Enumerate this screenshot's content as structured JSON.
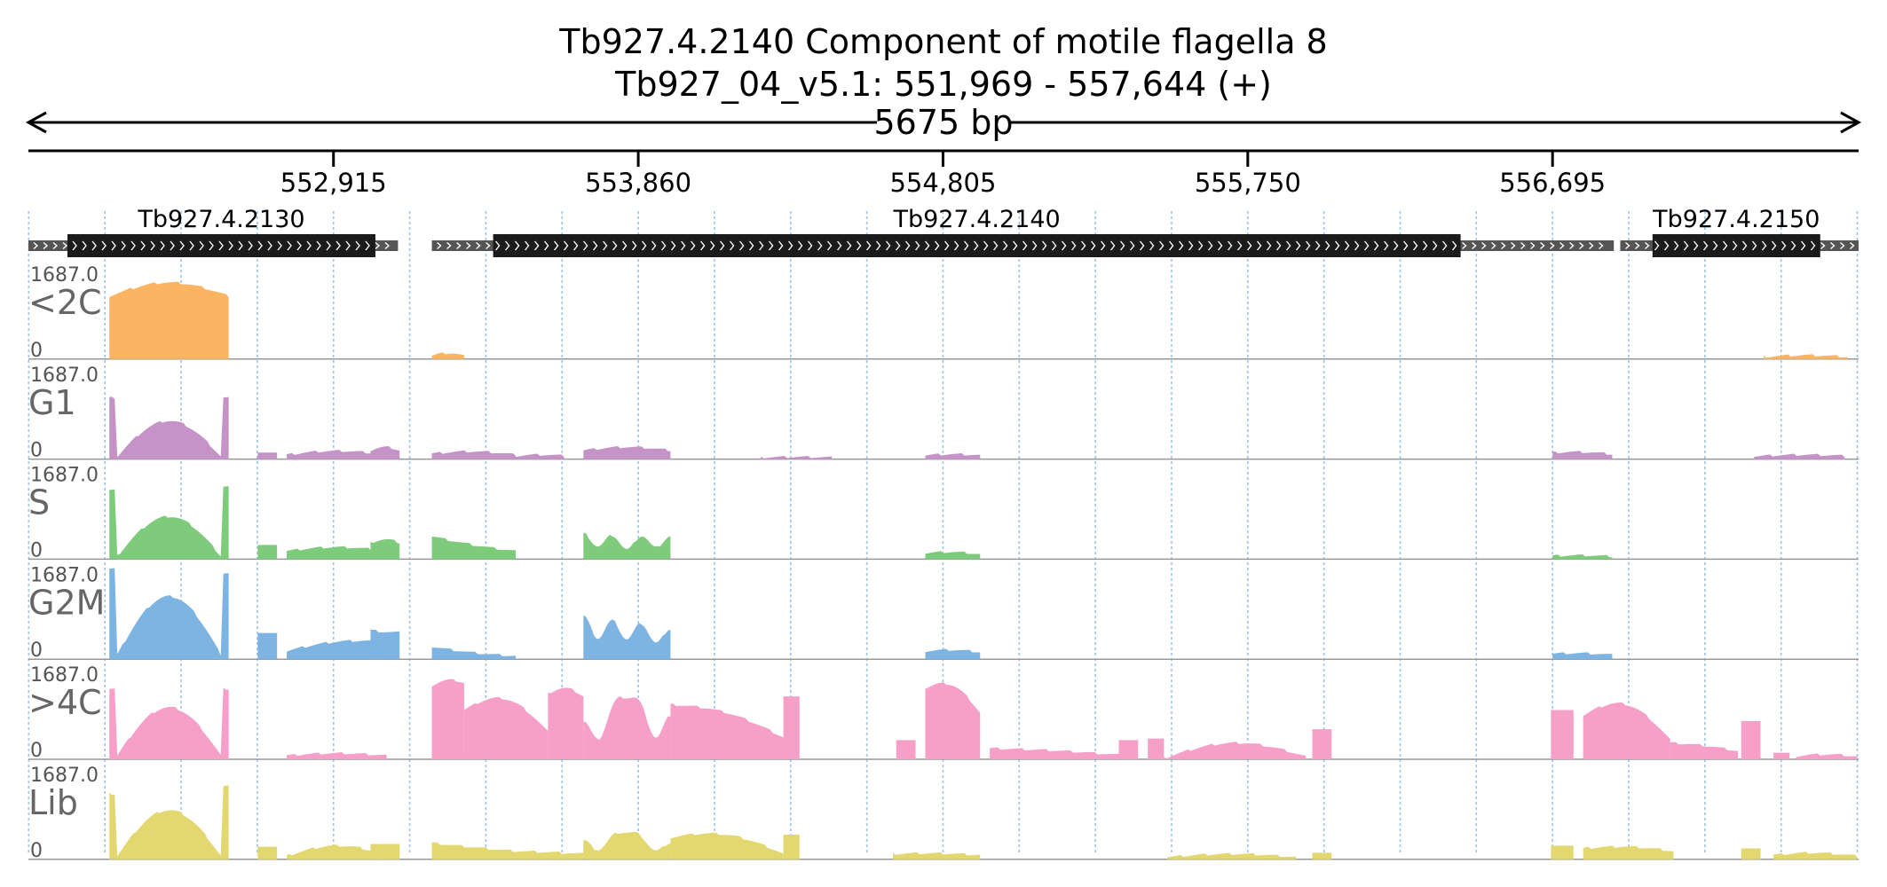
{
  "chart_data": {
    "type": "area",
    "title": "Tb927.4.2140  Component of motile flagella 8",
    "subtitle": "Tb927_04_v5.1: 551,969 - 557,644 (+)",
    "span_label": "5675 bp",
    "xlim": [
      551969,
      557644
    ],
    "x_ticks": [
      552915,
      553860,
      554805,
      555750,
      556695
    ],
    "x_tick_labels": [
      "552,915",
      "553,860",
      "554,805",
      "555,750",
      "556,695"
    ],
    "genes": [
      {
        "name": "Tb927.4.2130",
        "utr": [
          551969,
          553115
        ],
        "cds": [
          552090,
          553045
        ]
      },
      {
        "name": "Tb927.4.2140",
        "utr": [
          553220,
          556885
        ],
        "cds": [
          553410,
          556410
        ]
      },
      {
        "name": "Tb927.4.2150",
        "utr": [
          556905,
          557644
        ],
        "cds": [
          557005,
          557525
        ]
      }
    ],
    "ylim": [
      0,
      1687.0
    ],
    "y_max_label": "1687.0",
    "y_min_label": "0",
    "series": [
      {
        "name": "<2C",
        "color": "#fbb461",
        "segments": [
          {
            "x": [
              552220,
              552590
            ],
            "y0": 1150,
            "peak": 1400,
            "y1": 1150,
            "kind": "hump"
          },
          {
            "x": [
              553220,
              553320
            ],
            "y0": 60,
            "peak": 110,
            "y1": 60,
            "kind": "hump"
          },
          {
            "x": [
              557350,
              557610
            ],
            "y0": 40,
            "peak": 70,
            "y1": 40,
            "kind": "hump"
          }
        ]
      },
      {
        "name": "G1",
        "color": "#c593c7",
        "segments": [
          {
            "x": [
              552220,
              552590
            ],
            "y0": 1120,
            "peak": 700,
            "y1": 1120,
            "kind": "cup"
          },
          {
            "x": [
              552680,
              552740
            ],
            "y0": 120,
            "peak": 120,
            "y1": 120,
            "kind": "flat"
          },
          {
            "x": [
              552770,
              553080
            ],
            "y0": 80,
            "peak": 150,
            "y1": 80,
            "kind": "hump"
          },
          {
            "x": [
              553030,
              553120
            ],
            "y0": 160,
            "peak": 220,
            "y1": 160,
            "kind": "hump"
          },
          {
            "x": [
              553220,
              553480
            ],
            "y0": 100,
            "peak": 140,
            "y1": 80,
            "kind": "hump"
          },
          {
            "x": [
              553480,
              553630
            ],
            "y0": 60,
            "peak": 80,
            "y1": 60,
            "kind": "hump"
          },
          {
            "x": [
              553690,
              553960
            ],
            "y0": 160,
            "peak": 220,
            "y1": 160,
            "kind": "hump"
          },
          {
            "x": [
              554240,
              554460
            ],
            "y0": 30,
            "peak": 40,
            "y1": 30,
            "kind": "hump"
          },
          {
            "x": [
              554750,
              554920
            ],
            "y0": 70,
            "peak": 90,
            "y1": 70,
            "kind": "hump"
          },
          {
            "x": [
              556695,
              556880
            ],
            "y0": 120,
            "peak": 130,
            "y1": 90,
            "kind": "hump"
          },
          {
            "x": [
              557320,
              557600
            ],
            "y0": 50,
            "peak": 80,
            "y1": 60,
            "kind": "hump"
          }
        ]
      },
      {
        "name": "S",
        "color": "#7fcb7c",
        "segments": [
          {
            "x": [
              552220,
              552590
            ],
            "y0": 1260,
            "peak": 780,
            "y1": 1330,
            "kind": "cup"
          },
          {
            "x": [
              552680,
              552740
            ],
            "y0": 260,
            "peak": 260,
            "y1": 260,
            "kind": "flat"
          },
          {
            "x": [
              552770,
              553080
            ],
            "y0": 150,
            "peak": 220,
            "y1": 150,
            "kind": "hump"
          },
          {
            "x": [
              553030,
              553120
            ],
            "y0": 300,
            "peak": 360,
            "y1": 300,
            "kind": "hump"
          },
          {
            "x": [
              553220,
              553480
            ],
            "y0": 420,
            "peak": 260,
            "y1": 150,
            "kind": "hump"
          },
          {
            "x": [
              553690,
              553960
            ],
            "y0": 470,
            "peak": 400,
            "y1": 420,
            "kind": "wave"
          },
          {
            "x": [
              554750,
              554920
            ],
            "y0": 110,
            "peak": 130,
            "y1": 90,
            "kind": "hump"
          },
          {
            "x": [
              556695,
              556880
            ],
            "y0": 60,
            "peak": 70,
            "y1": 50,
            "kind": "hump"
          }
        ]
      },
      {
        "name": "G2M",
        "color": "#7eb4e2",
        "segments": [
          {
            "x": [
              552220,
              552590
            ],
            "y0": 1660,
            "peak": 1150,
            "y1": 1580,
            "kind": "cup"
          },
          {
            "x": [
              552680,
              552740
            ],
            "y0": 480,
            "peak": 480,
            "y1": 480,
            "kind": "flat"
          },
          {
            "x": [
              552770,
              553080
            ],
            "y0": 150,
            "peak": 320,
            "y1": 320,
            "kind": "hump"
          },
          {
            "x": [
              553030,
              553120
            ],
            "y0": 530,
            "peak": 500,
            "y1": 490,
            "kind": "hump"
          },
          {
            "x": [
              553220,
              553480
            ],
            "y0": 230,
            "peak": 120,
            "y1": 60,
            "kind": "hump"
          },
          {
            "x": [
              553690,
              553960
            ],
            "y0": 800,
            "peak": 700,
            "y1": 550,
            "kind": "wave"
          },
          {
            "x": [
              554750,
              554920
            ],
            "y0": 150,
            "peak": 170,
            "y1": 130,
            "kind": "hump"
          },
          {
            "x": [
              556695,
              556880
            ],
            "y0": 100,
            "peak": 110,
            "y1": 80,
            "kind": "hump"
          }
        ]
      },
      {
        "name": ">4C",
        "color": "#f59fc9",
        "segments": [
          {
            "x": [
              552220,
              552590
            ],
            "y0": 1300,
            "peak": 950,
            "y1": 1290,
            "kind": "cup"
          },
          {
            "x": [
              552770,
              553080
            ],
            "y0": 70,
            "peak": 110,
            "y1": 70,
            "kind": "hump"
          },
          {
            "x": [
              553220,
              553320
            ],
            "y0": 1350,
            "peak": 1450,
            "y1": 1400,
            "kind": "hump"
          },
          {
            "x": [
              553320,
              553580
            ],
            "y0": 900,
            "peak": 1100,
            "y1": 500,
            "kind": "hump"
          },
          {
            "x": [
              553580,
              553690
            ],
            "y0": 1200,
            "peak": 1300,
            "y1": 1150,
            "kind": "hump"
          },
          {
            "x": [
              553690,
              553960
            ],
            "y0": 700,
            "peak": 1500,
            "y1": 800,
            "kind": "wave"
          },
          {
            "x": [
              553960,
              554310
            ],
            "y0": 1000,
            "peak": 850,
            "y1": 400,
            "kind": "hump"
          },
          {
            "x": [
              554310,
              554360
            ],
            "y0": 1150,
            "peak": 1150,
            "y1": 1150,
            "kind": "flat"
          },
          {
            "x": [
              554660,
              554720
            ],
            "y0": 350,
            "peak": 350,
            "y1": 350,
            "kind": "flat"
          },
          {
            "x": [
              554750,
              554920
            ],
            "y0": 1300,
            "peak": 1350,
            "y1": 850,
            "kind": "hump"
          },
          {
            "x": [
              554950,
              555350
            ],
            "y0": 200,
            "peak": 160,
            "y1": 80,
            "kind": "hump"
          },
          {
            "x": [
              555350,
              555410
            ],
            "y0": 350,
            "peak": 350,
            "y1": 350,
            "kind": "flat"
          },
          {
            "x": [
              555440,
              555490
            ],
            "y0": 380,
            "peak": 380,
            "y1": 380,
            "kind": "flat"
          },
          {
            "x": [
              555490,
              555930
            ],
            "y0": 20,
            "peak": 300,
            "y1": 50,
            "kind": "hump"
          },
          {
            "x": [
              555950,
              556010
            ],
            "y0": 550,
            "peak": 550,
            "y1": 550,
            "kind": "flat"
          },
          {
            "x": [
              556690,
              556760
            ],
            "y0": 900,
            "peak": 900,
            "y1": 900,
            "kind": "flat"
          },
          {
            "x": [
              556790,
              557060
            ],
            "y0": 800,
            "peak": 1000,
            "y1": 350,
            "kind": "hump"
          },
          {
            "x": [
              557060,
              557270
            ],
            "y0": 300,
            "peak": 250,
            "y1": 150,
            "kind": "hump"
          },
          {
            "x": [
              557280,
              557340
            ],
            "y0": 700,
            "peak": 700,
            "y1": 700,
            "kind": "flat"
          },
          {
            "x": [
              557380,
              557430
            ],
            "y0": 120,
            "peak": 120,
            "y1": 120,
            "kind": "flat"
          },
          {
            "x": [
              557450,
              557640
            ],
            "y0": 60,
            "peak": 90,
            "y1": 50,
            "kind": "hump"
          }
        ]
      },
      {
        "name": "Lib",
        "color": "#e3d870",
        "segments": [
          {
            "x": [
              552220,
              552590
            ],
            "y0": 1200,
            "peak": 900,
            "y1": 1330,
            "kind": "cup"
          },
          {
            "x": [
              552680,
              552740
            ],
            "y0": 230,
            "peak": 230,
            "y1": 230,
            "kind": "flat"
          },
          {
            "x": [
              552770,
              553080
            ],
            "y0": 60,
            "peak": 250,
            "y1": 80,
            "kind": "hump"
          },
          {
            "x": [
              553030,
              553120
            ],
            "y0": 280,
            "peak": 280,
            "y1": 280,
            "kind": "flat"
          },
          {
            "x": [
              553220,
              553480
            ],
            "y0": 300,
            "peak": 220,
            "y1": 150,
            "kind": "hump"
          },
          {
            "x": [
              553480,
              553690
            ],
            "y0": 150,
            "peak": 130,
            "y1": 100,
            "kind": "hump"
          },
          {
            "x": [
              553690,
              553960
            ],
            "y0": 350,
            "peak": 650,
            "y1": 300,
            "kind": "wave"
          },
          {
            "x": [
              553960,
              554310
            ],
            "y0": 400,
            "peak": 450,
            "y1": 100,
            "kind": "hump"
          },
          {
            "x": [
              554310,
              554360
            ],
            "y0": 450,
            "peak": 450,
            "y1": 450,
            "kind": "flat"
          },
          {
            "x": [
              554650,
              554920
            ],
            "y0": 100,
            "peak": 110,
            "y1": 80,
            "kind": "hump"
          },
          {
            "x": [
              555500,
              555900
            ],
            "y0": 40,
            "peak": 100,
            "y1": 40,
            "kind": "hump"
          },
          {
            "x": [
              555950,
              556010
            ],
            "y0": 120,
            "peak": 120,
            "y1": 120,
            "kind": "flat"
          },
          {
            "x": [
              556690,
              556760
            ],
            "y0": 250,
            "peak": 250,
            "y1": 250,
            "kind": "flat"
          },
          {
            "x": [
              556790,
              557070
            ],
            "y0": 200,
            "peak": 230,
            "y1": 150,
            "kind": "hump"
          },
          {
            "x": [
              557280,
              557340
            ],
            "y0": 200,
            "peak": 200,
            "y1": 200,
            "kind": "flat"
          },
          {
            "x": [
              557380,
              557640
            ],
            "y0": 80,
            "peak": 120,
            "y1": 60,
            "kind": "hump"
          }
        ]
      }
    ]
  },
  "colors": {
    "gridline": "#9cc3e8",
    "gene_cds": "#1b1b1b",
    "gene_utr": "#555555",
    "track_divider": "#999999"
  }
}
